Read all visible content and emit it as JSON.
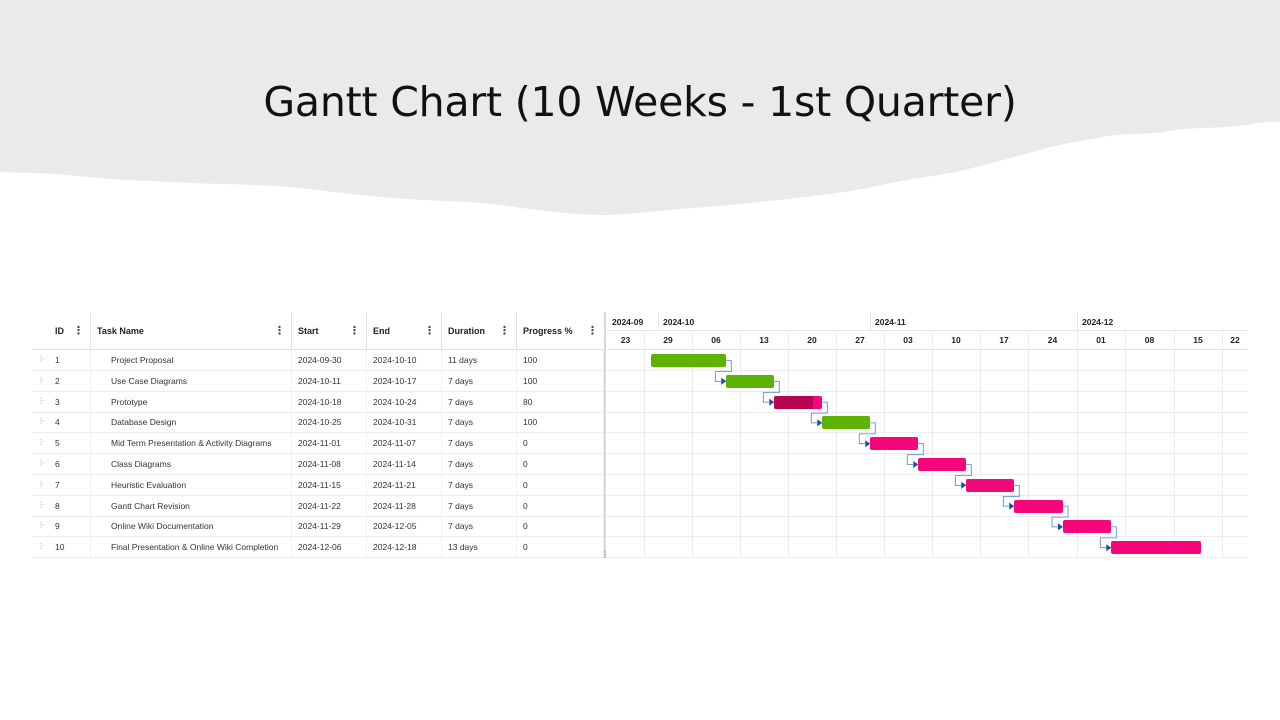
{
  "slide": {
    "title": "Gantt Chart (10 Weeks - 1st Quarter)"
  },
  "colors": {
    "banner": "#ebeae8",
    "done": "#5cb300",
    "pending": "#f5067a",
    "in_progress_done": "#b7064f",
    "in_progress_rest": "#f5067a",
    "link": "#4a86d0",
    "link_arrow": "#1f4fa0"
  },
  "grid": {
    "headers": {
      "id": "ID",
      "task": "Task Name",
      "start": "Start",
      "end": "End",
      "duration": "Duration",
      "progress": "Progress %"
    },
    "column_menu_icon": "kebab-menu-icon",
    "row_handle_icon": "drag-handle-icon",
    "rows": [
      {
        "id": "1",
        "task": "Project Proposal",
        "start": "2024-09-30",
        "end": "2024-10-10",
        "duration": "11 days",
        "progress": "100"
      },
      {
        "id": "2",
        "task": "Use Case Diagrams",
        "start": "2024-10-11",
        "end": "2024-10-17",
        "duration": "7 days",
        "progress": "100"
      },
      {
        "id": "3",
        "task": "Prototype",
        "start": "2024-10-18",
        "end": "2024-10-24",
        "duration": "7 days",
        "progress": "80"
      },
      {
        "id": "4",
        "task": "Database Design",
        "start": "2024-10-25",
        "end": "2024-10-31",
        "duration": "7 days",
        "progress": "100"
      },
      {
        "id": "5",
        "task": "Mid Term Presentation & Activity Diagrams",
        "start": "2024-11-01",
        "end": "2024-11-07",
        "duration": "7 days",
        "progress": "0"
      },
      {
        "id": "6",
        "task": "Class Diagrams",
        "start": "2024-11-08",
        "end": "2024-11-14",
        "duration": "7 days",
        "progress": "0"
      },
      {
        "id": "7",
        "task": "Heuristic Evaluation",
        "start": "2024-11-15",
        "end": "2024-11-21",
        "duration": "7 days",
        "progress": "0"
      },
      {
        "id": "8",
        "task": "Gantt Chart Revision",
        "start": "2024-11-22",
        "end": "2024-11-28",
        "duration": "7 days",
        "progress": "0"
      },
      {
        "id": "9",
        "task": "Online Wiki Documentation",
        "start": "2024-11-29",
        "end": "2024-12-05",
        "duration": "7 days",
        "progress": "0"
      },
      {
        "id": "10",
        "task": "Final Presentation & Online Wiki Completion",
        "start": "2024-12-06",
        "end": "2024-12-18",
        "duration": "13 days",
        "progress": "0"
      }
    ]
  },
  "timeline": {
    "months": [
      "2024-09",
      "2024-10",
      "2024-11",
      "2024-12"
    ],
    "weeks": [
      "23",
      "29",
      "06",
      "13",
      "20",
      "27",
      "03",
      "10",
      "17",
      "24",
      "01",
      "08",
      "15",
      "22"
    ],
    "week_start_dates": [
      "2024-09-23",
      "2024-09-29",
      "2024-10-06",
      "2024-10-13",
      "2024-10-20",
      "2024-10-27",
      "2024-11-03",
      "2024-11-10",
      "2024-11-17",
      "2024-11-24",
      "2024-12-01",
      "2024-12-08",
      "2024-12-15",
      "2024-12-22"
    ]
  }
}
